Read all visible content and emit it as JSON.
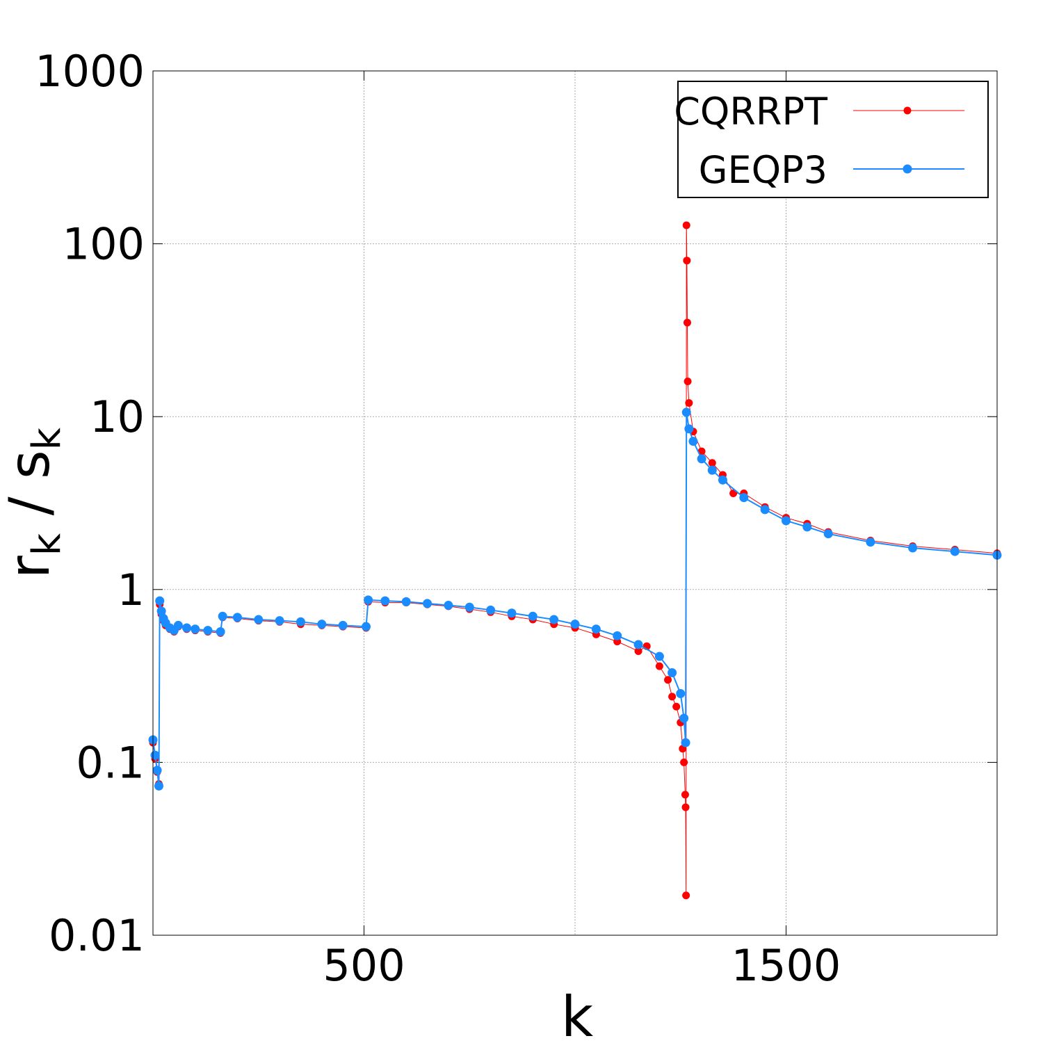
{
  "chart_data": {
    "type": "line",
    "log_y": true,
    "grid": true,
    "legend": "upper right",
    "xlabel": "k",
    "ylabel": [
      {
        "text": "r"
      },
      {
        "text": "k",
        "sub": true
      },
      {
        "text": " / "
      },
      {
        "text": "s"
      },
      {
        "text": "k",
        "sub": true
      }
    ],
    "xlim": [
      0,
      2000
    ],
    "xticks": [
      500,
      1500
    ],
    "xgrid": [
      500,
      1000,
      1500
    ],
    "ylim": [
      0.01,
      1000
    ],
    "yticks": [
      0.01,
      0.1,
      1,
      10,
      100,
      1000
    ],
    "series": [
      {
        "name": "CQRRPT",
        "color": "#ff0000",
        "x": [
          0,
          5,
          10,
          14,
          16,
          20,
          25,
          30,
          40,
          50,
          60,
          80,
          100,
          130,
          160,
          165,
          200,
          250,
          300,
          350,
          400,
          450,
          505,
          510,
          550,
          600,
          650,
          700,
          750,
          800,
          850,
          900,
          950,
          1000,
          1050,
          1100,
          1150,
          1170,
          1200,
          1220,
          1230,
          1240,
          1250,
          1255,
          1258,
          1261,
          1262,
          1263,
          1264,
          1265,
          1266,
          1267,
          1270,
          1280,
          1300,
          1325,
          1350,
          1375,
          1400,
          1450,
          1500,
          1550,
          1600,
          1700,
          1800,
          1900,
          2000
        ],
        "values": [
          0.13,
          0.105,
          0.088,
          0.075,
          0.82,
          0.72,
          0.66,
          0.62,
          0.59,
          0.57,
          0.61,
          0.59,
          0.58,
          0.57,
          0.56,
          0.69,
          0.68,
          0.66,
          0.65,
          0.63,
          0.62,
          0.61,
          0.6,
          0.85,
          0.84,
          0.84,
          0.82,
          0.8,
          0.77,
          0.74,
          0.7,
          0.67,
          0.63,
          0.6,
          0.55,
          0.5,
          0.44,
          0.47,
          0.36,
          0.3,
          0.24,
          0.21,
          0.17,
          0.12,
          0.1,
          0.065,
          0.055,
          0.017,
          128,
          80,
          35,
          16,
          12,
          8.2,
          6.3,
          5.4,
          4.6,
          3.6,
          3.6,
          3.0,
          2.6,
          2.4,
          2.15,
          1.92,
          1.78,
          1.7,
          1.62
        ]
      },
      {
        "name": "GEQP3",
        "color": "#1a8cff",
        "x": [
          0,
          5,
          10,
          14,
          16,
          20,
          25,
          30,
          40,
          50,
          60,
          80,
          100,
          130,
          160,
          165,
          200,
          250,
          300,
          350,
          400,
          450,
          505,
          510,
          550,
          600,
          650,
          700,
          750,
          800,
          850,
          900,
          950,
          1000,
          1050,
          1100,
          1150,
          1200,
          1230,
          1250,
          1258,
          1262,
          1264,
          1270,
          1280,
          1300,
          1325,
          1350,
          1400,
          1450,
          1500,
          1550,
          1600,
          1700,
          1800,
          1900,
          2000
        ],
        "values": [
          0.135,
          0.11,
          0.09,
          0.073,
          0.86,
          0.75,
          0.68,
          0.64,
          0.6,
          0.58,
          0.62,
          0.6,
          0.59,
          0.58,
          0.57,
          0.7,
          0.69,
          0.67,
          0.66,
          0.65,
          0.63,
          0.62,
          0.61,
          0.87,
          0.86,
          0.85,
          0.83,
          0.81,
          0.79,
          0.76,
          0.73,
          0.7,
          0.67,
          0.63,
          0.59,
          0.54,
          0.48,
          0.41,
          0.33,
          0.25,
          0.18,
          0.13,
          10.6,
          8.5,
          7.2,
          5.7,
          4.9,
          4.3,
          3.4,
          2.9,
          2.5,
          2.3,
          2.1,
          1.88,
          1.74,
          1.66,
          1.58
        ]
      }
    ]
  }
}
